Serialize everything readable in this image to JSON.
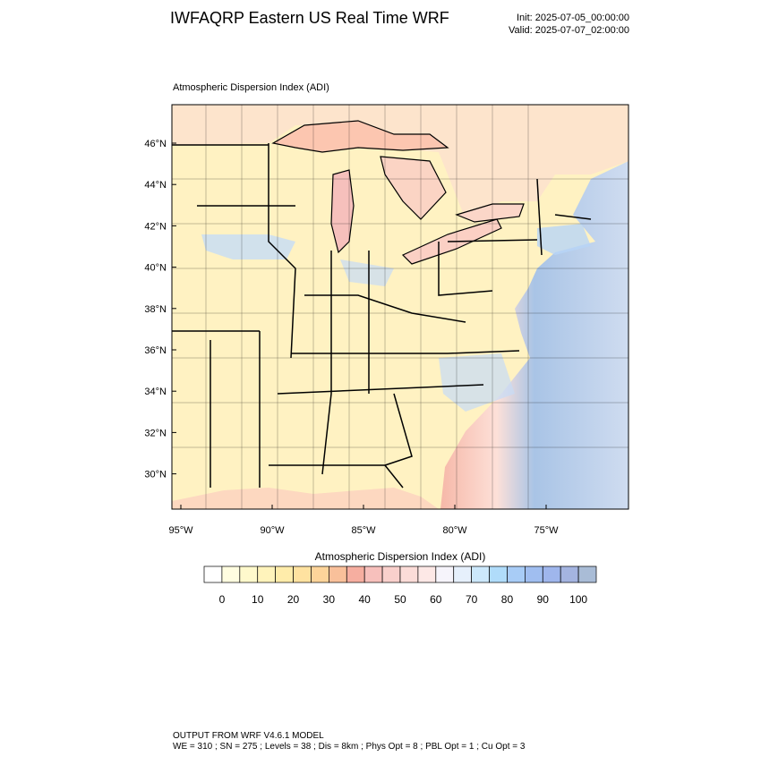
{
  "header": {
    "title": "IWFAQRP Eastern US Real Time WRF",
    "init": "Init: 2025-07-05_00:00:00",
    "valid": "Valid: 2025-07-07_02:00:00"
  },
  "map": {
    "title": "Atmospheric Dispersion Index   (ADI)",
    "lat_labels": [
      "46°N",
      "44°N",
      "42°N",
      "40°N",
      "38°N",
      "36°N",
      "34°N",
      "32°N",
      "30°N"
    ],
    "lon_labels": [
      "95°W",
      "90°W",
      "85°W",
      "80°W",
      "75°W"
    ]
  },
  "colorbar": {
    "title": "Atmospheric Dispersion Index  (ADI)",
    "colors": [
      "#ffffff",
      "#fffde0",
      "#fff9cc",
      "#fff3bb",
      "#ffecaa",
      "#ffe2a0",
      "#fdd49a",
      "#f9c09a",
      "#f6aea0",
      "#f7c0bc",
      "#f9d0cc",
      "#fbdcd8",
      "#fde8e6",
      "#f6f4fb",
      "#e6f0fc",
      "#cce8fb",
      "#b0dcfa",
      "#a8ccf6",
      "#a0bef0",
      "#9fb6ec",
      "#a4b4e0",
      "#a9bcd6"
    ],
    "labels": [
      0,
      10,
      20,
      30,
      40,
      50,
      60,
      70,
      80,
      90,
      100
    ]
  },
  "footer": {
    "line1": "OUTPUT FROM WRF V4.6.1 MODEL",
    "line2": "WE = 310 ; SN = 275 ; Levels = 38 ; Dis = 8km ; Phys Opt = 8 ; PBL Opt = 1 ; Cu Opt = 3"
  }
}
